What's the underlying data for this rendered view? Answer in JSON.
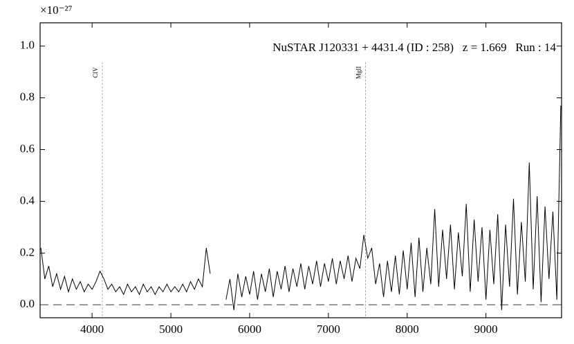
{
  "chart_data": {
    "type": "line",
    "title": "NuSTAR J120331 + 4431.4 (ID : 258)   z = 1.669   Run : 14",
    "y_offset_label": "×10⁻²⁷",
    "color": "#000000",
    "x": [
      3350,
      3400,
      3450,
      3500,
      3550,
      3600,
      3650,
      3700,
      3750,
      3800,
      3850,
      3900,
      3950,
      4000,
      4050,
      4100,
      4150,
      4200,
      4250,
      4300,
      4350,
      4400,
      4450,
      4500,
      4550,
      4600,
      4650,
      4700,
      4750,
      4800,
      4850,
      4900,
      4950,
      5000,
      5050,
      5100,
      5150,
      5200,
      5250,
      5300,
      5350,
      5400,
      5450,
      5500,
      5550,
      5600,
      5650,
      5700,
      5750,
      5800,
      5850,
      5900,
      5950,
      6000,
      6050,
      6100,
      6150,
      6200,
      6250,
      6300,
      6350,
      6400,
      6450,
      6500,
      6550,
      6600,
      6650,
      6700,
      6750,
      6800,
      6850,
      6900,
      6950,
      7000,
      7050,
      7100,
      7150,
      7200,
      7250,
      7300,
      7350,
      7400,
      7450,
      7500,
      7550,
      7600,
      7650,
      7700,
      7750,
      7800,
      7850,
      7900,
      7950,
      8000,
      8050,
      8100,
      8150,
      8200,
      8250,
      8300,
      8350,
      8400,
      8450,
      8500,
      8550,
      8600,
      8650,
      8700,
      8750,
      8800,
      8850,
      8900,
      8950,
      9000,
      9050,
      9100,
      9150,
      9200,
      9250,
      9300,
      9350,
      9400,
      9450,
      9500,
      9550,
      9600,
      9650,
      9700,
      9750,
      9800,
      9850,
      9900,
      9950
    ],
    "values": [
      0.22,
      0.1,
      0.15,
      0.07,
      0.12,
      0.06,
      0.11,
      0.05,
      0.1,
      0.06,
      0.09,
      0.05,
      0.08,
      0.06,
      0.09,
      0.13,
      0.1,
      0.06,
      0.08,
      0.05,
      0.07,
      0.04,
      0.08,
      0.05,
      0.07,
      0.04,
      0.08,
      0.05,
      0.07,
      0.04,
      0.07,
      0.05,
      0.08,
      0.05,
      0.07,
      0.05,
      0.08,
      0.05,
      0.09,
      0.06,
      0.1,
      0.07,
      0.22,
      0.12,
      null,
      null,
      null,
      0.02,
      0.1,
      -0.02,
      0.12,
      0.03,
      0.11,
      0.04,
      0.13,
      0.02,
      0.12,
      0.05,
      0.14,
      0.03,
      0.13,
      0.06,
      0.15,
      0.05,
      0.14,
      0.07,
      0.16,
      0.06,
      0.15,
      0.08,
      0.17,
      0.07,
      0.16,
      0.09,
      0.18,
      0.08,
      0.17,
      0.1,
      0.19,
      0.09,
      0.18,
      0.14,
      0.27,
      0.18,
      0.22,
      0.08,
      0.16,
      0.03,
      0.17,
      0.05,
      0.19,
      0.04,
      0.21,
      0.06,
      0.24,
      0.03,
      0.26,
      0.05,
      0.22,
      0.08,
      0.37,
      0.07,
      0.29,
      0.1,
      0.31,
      0.06,
      0.28,
      0.11,
      0.39,
      0.05,
      0.33,
      0.09,
      0.3,
      0.02,
      0.29,
      0.08,
      0.35,
      -0.02,
      0.31,
      0.07,
      0.41,
      0.04,
      0.32,
      0.09,
      0.55,
      0.06,
      0.42,
      0.01,
      0.38,
      0.1,
      0.36,
      0.02,
      0.77
    ],
    "xlim": [
      3340,
      9960
    ],
    "ylim": [
      -0.05,
      1.09
    ],
    "xticks": [
      4000,
      5000,
      6000,
      7000,
      8000,
      9000
    ],
    "yticks": [
      {
        "value": 0,
        "label": "0.0"
      },
      0.2,
      0.4,
      0.6,
      0.8,
      {
        "value": 1,
        "label": "1.0"
      }
    ],
    "hline": 0,
    "annotations": [
      {
        "label": "CIV",
        "x": 4130
      },
      {
        "label": "MgII",
        "x": 7470
      }
    ]
  }
}
